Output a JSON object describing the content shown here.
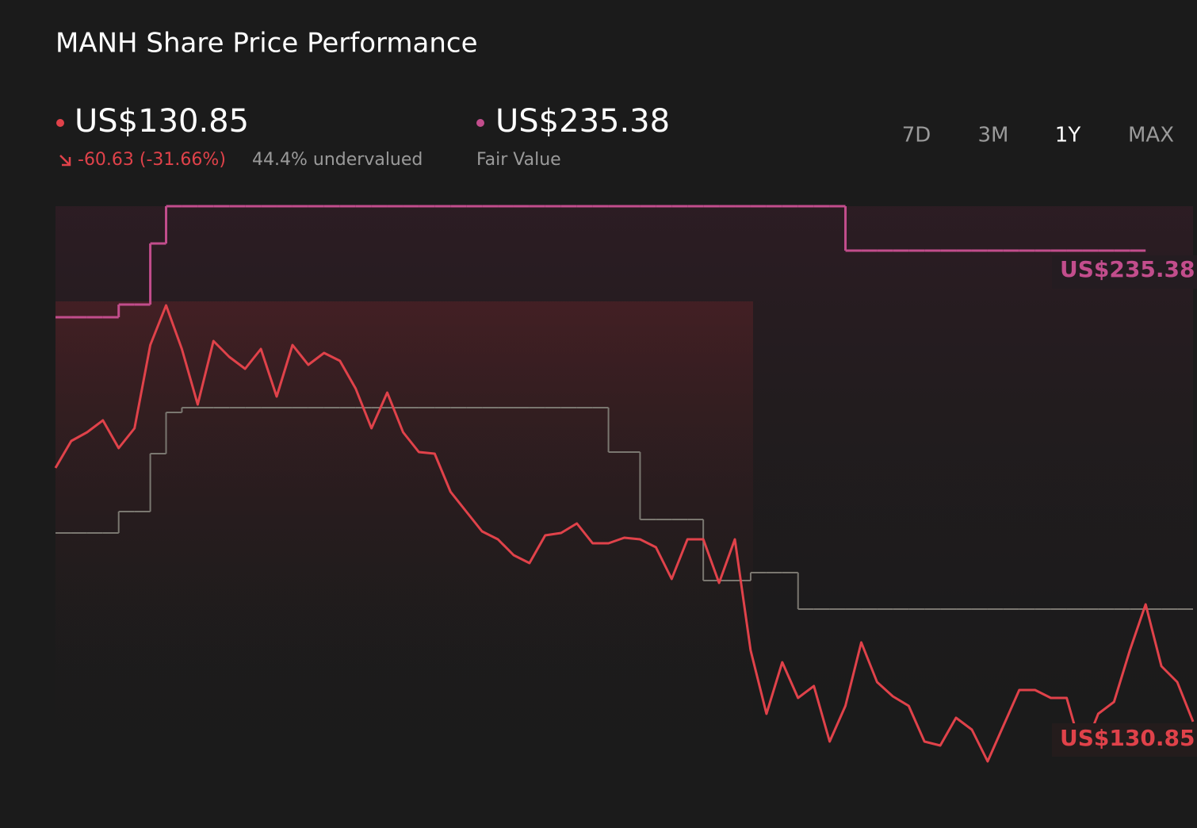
{
  "header": {
    "title": "MANH Share Price Performance",
    "price": "US$130.85",
    "change": "-60.63 (-31.66%)",
    "valuation": "44.4% undervalued",
    "fair_value": "US$235.38",
    "fair_value_caption": "Fair Value",
    "ranges": [
      "7D",
      "3M",
      "1Y",
      "MAX"
    ],
    "selected_range": "1Y",
    "fair_value_end_label": "US$235.38",
    "price_end_label": "US$130.85"
  },
  "chart_data": {
    "type": "line",
    "series": [
      {
        "color": "#7a7770",
        "step": true,
        "values": [
          172.72,
          172.72,
          172.72,
          172.72,
          177.48,
          177.48,
          190.32,
          199.48,
          200.54,
          200.54,
          200.54,
          200.54,
          200.54,
          200.54,
          200.54,
          200.54,
          200.54,
          200.54,
          200.54,
          200.54,
          200.54,
          200.54,
          200.54,
          200.54,
          200.54,
          200.54,
          200.54,
          200.54,
          200.54,
          200.54,
          200.54,
          200.54,
          200.54,
          200.54,
          200.54,
          190.68,
          190.68,
          175.72,
          175.72,
          175.72,
          175.72,
          162.16,
          162.16,
          162.16,
          163.92,
          163.92,
          163.92,
          155.83,
          155.83,
          155.83,
          155.83,
          155.83,
          155.83,
          155.83,
          155.83,
          155.83,
          155.83,
          155.83,
          155.83,
          155.83,
          155.83,
          155.83,
          155.83,
          155.83,
          155.83,
          155.83,
          155.83,
          155.83,
          155.83,
          155.83,
          155.83,
          155.83,
          155.83
        ]
      },
      {
        "name": "Fair Value",
        "color": "#c24d8c",
        "step": true,
        "values": [
          220.6,
          220.6,
          220.6,
          220.6,
          223.41,
          223.41,
          236.96,
          245.24,
          245.24,
          245.24,
          245.24,
          245.24,
          245.24,
          245.24,
          245.24,
          245.24,
          245.24,
          245.24,
          245.24,
          245.24,
          245.24,
          245.24,
          245.24,
          245.24,
          245.24,
          245.24,
          245.24,
          245.24,
          245.24,
          245.24,
          245.24,
          245.24,
          245.24,
          245.24,
          245.24,
          245.24,
          245.24,
          245.24,
          245.24,
          245.24,
          245.24,
          245.24,
          245.24,
          245.24,
          245.24,
          245.24,
          245.24,
          245.24,
          245.24,
          245.24,
          235.38,
          235.38,
          235.38,
          235.38,
          235.38,
          235.38,
          235.38,
          235.38,
          235.38,
          235.38,
          235.38,
          235.38,
          235.38,
          235.38,
          235.38,
          235.38,
          235.38,
          235.38,
          235.38,
          235.38,
          null,
          null,
          null
        ]
      },
      {
        "color": "#e0424a",
        "step": false,
        "values": [
          187.16,
          193.14,
          195.08,
          197.72,
          191.56,
          195.96,
          214.44,
          223.24,
          213.56,
          201.24,
          215.32,
          211.8,
          209.16,
          213.56,
          203.0,
          214.44,
          210.04,
          212.68,
          210.92,
          204.76,
          195.96,
          203.88,
          195.08,
          190.68,
          190.32,
          181.88,
          177.48,
          173.08,
          171.32,
          167.8,
          166.04,
          172.2,
          172.72,
          174.84,
          170.44,
          170.44,
          171.67,
          171.32,
          169.56,
          162.52,
          171.32,
          171.32,
          161.64,
          171.32,
          146.68,
          132.6,
          144.04,
          136.12,
          138.76,
          126.44,
          134.36,
          148.44,
          139.64,
          136.47,
          134.36,
          126.44,
          125.56,
          131.72,
          129.08,
          122.04,
          129.96,
          137.88,
          137.88,
          136.12,
          136.12,
          123.8,
          132.6,
          135.24,
          146.68,
          156.88,
          143.16,
          139.64,
          130.85
        ]
      }
    ]
  }
}
